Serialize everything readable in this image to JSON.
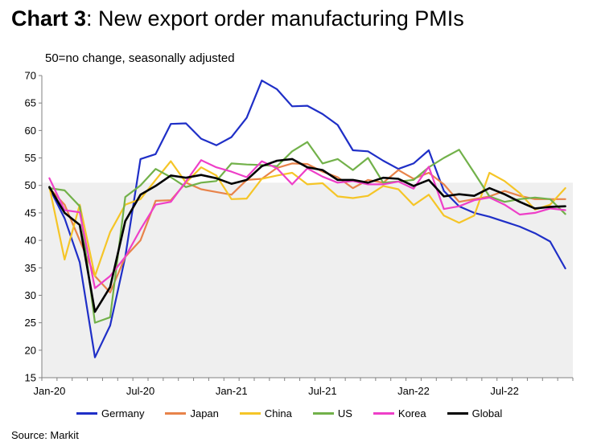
{
  "title": {
    "bold": "Chart 3",
    "rest": ": New export order manufacturing PMIs"
  },
  "source": "Source: Markit",
  "chart_data": {
    "type": "line",
    "title": "Chart 3: New export order manufacturing PMIs",
    "subtitle": "50=no change, seasonally adjusted",
    "x": [
      "2020-01",
      "2020-02",
      "2020-03",
      "2020-04",
      "2020-05",
      "2020-06",
      "2020-07",
      "2020-08",
      "2020-09",
      "2020-10",
      "2020-11",
      "2020-12",
      "2021-01",
      "2021-02",
      "2021-03",
      "2021-04",
      "2021-05",
      "2021-06",
      "2021-07",
      "2021-08",
      "2021-09",
      "2021-10",
      "2021-11",
      "2021-12",
      "2022-01",
      "2022-02",
      "2022-03",
      "2022-04",
      "2022-05",
      "2022-06",
      "2022-07",
      "2022-08",
      "2022-09",
      "2022-10",
      "2022-11"
    ],
    "x_tick_labels": [
      "Jan-20",
      "Jul-20",
      "Jan-21",
      "Jul-21",
      "Jan-22",
      "Jul-22"
    ],
    "ylim": [
      15,
      70
    ],
    "y_ticks": [
      15,
      20,
      25,
      30,
      35,
      40,
      45,
      50,
      55,
      60,
      65,
      70
    ],
    "shaded_band": [
      15,
      50.5
    ],
    "grid": false,
    "legend_position": "bottom",
    "series": [
      {
        "name": "Germany",
        "color": "#1f2fc7",
        "values": [
          49.5,
          44,
          36,
          18.7,
          24.5,
          37,
          54.8,
          55.7,
          61.2,
          61.3,
          58.5,
          57.3,
          58.8,
          62.3,
          69.1,
          67.5,
          64.4,
          64.5,
          63,
          61,
          56.4,
          56.2,
          54.5,
          53,
          54,
          56.4,
          49,
          46.2,
          45,
          44.3,
          43.4,
          42.5,
          41.3,
          39.8,
          34.9
        ]
      },
      {
        "name": "Japan",
        "color": "#e8834a",
        "values": [
          49.5,
          46.5,
          40,
          33.5,
          30.5,
          37,
          40,
          47.2,
          47.3,
          50.5,
          49.3,
          48.8,
          48.3,
          51,
          51.2,
          53.2,
          54,
          53.9,
          52.5,
          51.5,
          49.5,
          51,
          50.5,
          52.8,
          51.2,
          52.3,
          50.2,
          47,
          47.5,
          48,
          49,
          48.1,
          47.5,
          47.5,
          47.5
        ]
      },
      {
        "name": "China",
        "color": "#f5c527",
        "values": [
          49.7,
          36.5,
          46.5,
          33.5,
          41.5,
          46.5,
          47.5,
          51,
          54.4,
          50.5,
          53.3,
          51.8,
          47.5,
          47.6,
          51.2,
          51.8,
          52.3,
          50.2,
          50.4,
          48,
          47.7,
          48.1,
          49.9,
          49.3,
          46.4,
          48.3,
          44.5,
          43.2,
          44.5,
          52.3,
          50.8,
          48.6,
          45.6,
          46.5,
          49.5
        ]
      },
      {
        "name": "US",
        "color": "#72b14a",
        "values": [
          49.5,
          49.1,
          46.2,
          25,
          26,
          47.9,
          50,
          53,
          51.5,
          49.7,
          50.5,
          50.8,
          54,
          53.8,
          53.7,
          53.5,
          56.2,
          57.9,
          54,
          54.8,
          52.8,
          55,
          50.5,
          50.7,
          51,
          53.3,
          55,
          56.5,
          52.3,
          48,
          47,
          47.5,
          47.8,
          47.5,
          44.8
        ]
      },
      {
        "name": "Korea",
        "color": "#ee3fc8",
        "values": [
          51.3,
          45.5,
          45.1,
          31.3,
          33.5,
          37,
          42,
          46.5,
          47,
          50.7,
          54.6,
          53.3,
          52.5,
          51.5,
          54.4,
          53.1,
          50.2,
          53.1,
          51.6,
          50.5,
          50.8,
          50.2,
          50.2,
          50.7,
          49.4,
          53.4,
          45.7,
          46.2,
          47.3,
          47.8,
          46.5,
          44.7,
          45,
          45.8,
          45.5
        ]
      },
      {
        "name": "Global",
        "color": "#000000",
        "values": [
          49.7,
          45,
          42.8,
          27,
          31.5,
          43.5,
          48.3,
          49.9,
          51.8,
          51.4,
          51.9,
          51.3,
          50.3,
          51,
          53.5,
          54.5,
          54.8,
          53.3,
          52.8,
          51,
          51,
          50.5,
          51.4,
          51.2,
          49.9,
          51,
          48,
          48.4,
          48.1,
          49.5,
          48.4,
          47,
          45.8,
          46.1,
          46.2
        ]
      }
    ]
  }
}
